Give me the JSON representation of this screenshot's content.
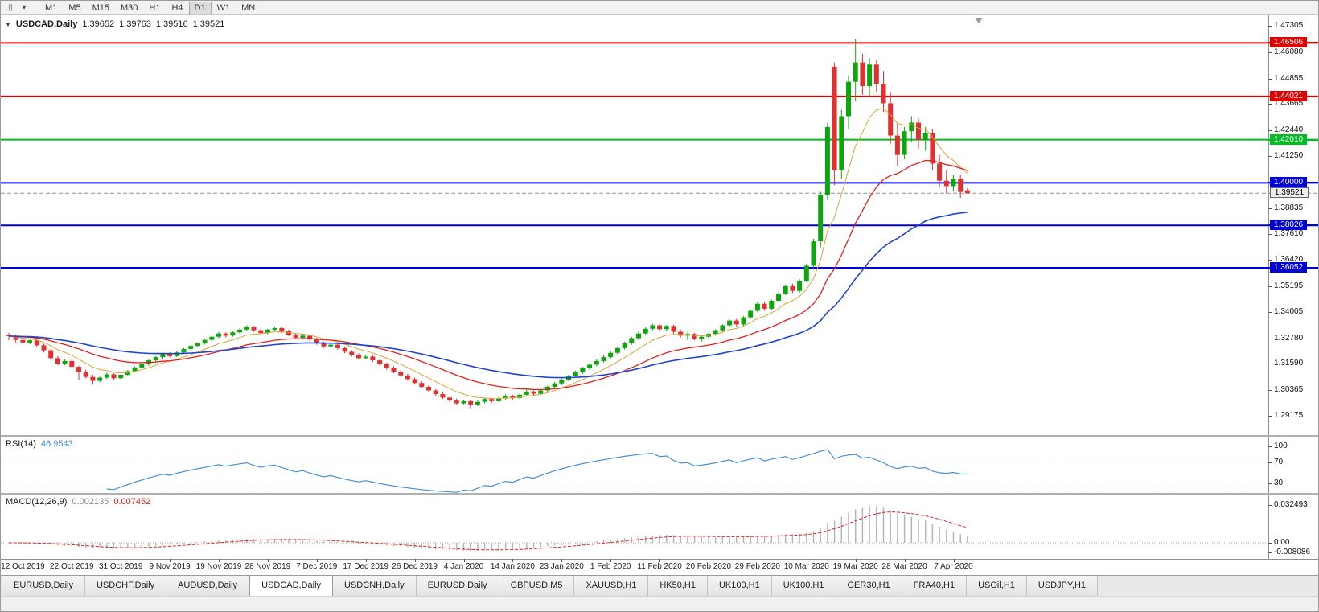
{
  "toolbar": {
    "icons": [
      {
        "name": "candlestick-chart-icon",
        "glyph": "▯"
      },
      {
        "name": "dropdown-caret-icon",
        "glyph": "▾"
      }
    ],
    "timeframes": [
      "M1",
      "M5",
      "M15",
      "M30",
      "H1",
      "H4",
      "D1",
      "W1",
      "MN"
    ],
    "active_timeframe": "D1"
  },
  "chart": {
    "collapse_glyph": "▼",
    "shift_marker_glyph": "▼",
    "header": {
      "symbol": "USDCAD,Daily",
      "open": "1.39652",
      "high": "1.39763",
      "low": "1.39516",
      "close": "1.39521"
    },
    "colors": {
      "bull": "#0ea50e",
      "bear": "#e03030",
      "current_line": "#909090",
      "scale_border": "#8f8f8f"
    },
    "price_axis_ticks": [
      "1.47305",
      "1.46080",
      "1.44855",
      "1.43665",
      "1.42440",
      "1.41250",
      "1.38835",
      "1.37610",
      "1.36420",
      "1.35195",
      "1.34005",
      "1.32780",
      "1.31590",
      "1.30365",
      "1.29175"
    ],
    "levels": [
      {
        "label": "1.46506",
        "price": 1.46506,
        "color": "#e00000"
      },
      {
        "label": "1.44021",
        "price": 1.44021,
        "color": "#e00000"
      },
      {
        "label": "1.42010",
        "price": 1.4201,
        "color": "#00bb22"
      },
      {
        "label": "1.40000",
        "price": 1.4,
        "color": "#0000d8"
      },
      {
        "label": "1.38026",
        "price": 1.38026,
        "color": "#0000d8"
      },
      {
        "label": "1.36052",
        "price": 1.36052,
        "color": "#0000d8"
      }
    ],
    "current_price": "1.39521"
  },
  "chart_data": {
    "type": "candlestick",
    "title": "USDCAD Daily",
    "y_axis_range": [
      1.29175,
      1.47305
    ],
    "x_labels": [
      "12 Oct 2019",
      "22 Oct 2019",
      "31 Oct 2019",
      "9 Nov 2019",
      "19 Nov 2019",
      "28 Nov 2019",
      "7 Dec 2019",
      "17 Dec 2019",
      "26 Dec 2019",
      "4 Jan 2020",
      "14 Jan 2020",
      "23 Jan 2020",
      "1 Feb 2020",
      "11 Feb 2020",
      "20 Feb 2020",
      "29 Feb 2020",
      "10 Mar 2020",
      "19 Mar 2020",
      "28 Mar 2020",
      "7 Apr 2020"
    ],
    "x_label_first_candle_index": 2,
    "x_label_candle_step": 7,
    "horizontal_levels": [
      1.46506,
      1.44021,
      1.4201,
      1.4,
      1.38026,
      1.36052
    ],
    "last_price": 1.39521,
    "moving_averages": [
      {
        "name": "ma-fast",
        "period": 8,
        "color": "#d8a53d",
        "width": 1
      },
      {
        "name": "ma-mid",
        "period": 21,
        "color": "#e02020",
        "width": 1.3
      },
      {
        "name": "ma-slow",
        "period": 45,
        "color": "#2244cc",
        "width": 1.6
      }
    ],
    "candles": [
      [
        1.3295,
        1.3302,
        1.3268,
        1.3288
      ],
      [
        1.3288,
        1.3296,
        1.3258,
        1.327
      ],
      [
        1.327,
        1.3282,
        1.3248,
        1.3258
      ],
      [
        1.3258,
        1.3275,
        1.325,
        1.3268
      ],
      [
        1.3268,
        1.3272,
        1.3238,
        1.3245
      ],
      [
        1.3245,
        1.3252,
        1.3212,
        1.3222
      ],
      [
        1.3222,
        1.323,
        1.3178,
        1.3185
      ],
      [
        1.3185,
        1.3195,
        1.3152,
        1.316
      ],
      [
        1.316,
        1.318,
        1.3152,
        1.3172
      ],
      [
        1.3172,
        1.3178,
        1.3138,
        1.3145
      ],
      [
        1.3145,
        1.315,
        1.3085,
        1.312
      ],
      [
        1.312,
        1.3132,
        1.3092,
        1.3098
      ],
      [
        1.3098,
        1.3108,
        1.3062,
        1.308
      ],
      [
        1.308,
        1.31,
        1.3072,
        1.3095
      ],
      [
        1.3095,
        1.3118,
        1.3088,
        1.311
      ],
      [
        1.311,
        1.3115,
        1.3085,
        1.3092
      ],
      [
        1.3092,
        1.3112,
        1.3086,
        1.3108
      ],
      [
        1.3108,
        1.313,
        1.31,
        1.3125
      ],
      [
        1.3125,
        1.3148,
        1.3118,
        1.3142
      ],
      [
        1.3142,
        1.3162,
        1.3135,
        1.3158
      ],
      [
        1.3158,
        1.318,
        1.315,
        1.3175
      ],
      [
        1.3175,
        1.3195,
        1.3168,
        1.319
      ],
      [
        1.319,
        1.321,
        1.3182,
        1.3205
      ],
      [
        1.3205,
        1.3212,
        1.3188,
        1.3195
      ],
      [
        1.3195,
        1.3218,
        1.319,
        1.3212
      ],
      [
        1.3212,
        1.3232,
        1.3205,
        1.3228
      ],
      [
        1.3228,
        1.3248,
        1.322,
        1.3242
      ],
      [
        1.3242,
        1.326,
        1.3235,
        1.3255
      ],
      [
        1.3255,
        1.3275,
        1.3248,
        1.327
      ],
      [
        1.327,
        1.329,
        1.3262,
        1.3285
      ],
      [
        1.3285,
        1.3308,
        1.3278,
        1.33
      ],
      [
        1.33,
        1.3306,
        1.3282,
        1.329
      ],
      [
        1.329,
        1.3312,
        1.3285,
        1.3305
      ],
      [
        1.3305,
        1.3325,
        1.3298,
        1.3318
      ],
      [
        1.3318,
        1.3338,
        1.331,
        1.333
      ],
      [
        1.333,
        1.3335,
        1.3308,
        1.3315
      ],
      [
        1.3315,
        1.3322,
        1.3295,
        1.3302
      ],
      [
        1.3302,
        1.3322,
        1.3296,
        1.3318
      ],
      [
        1.3318,
        1.3332,
        1.331,
        1.3325
      ],
      [
        1.3325,
        1.333,
        1.3302,
        1.331
      ],
      [
        1.331,
        1.3318,
        1.3288,
        1.3295
      ],
      [
        1.3295,
        1.3302,
        1.3272,
        1.328
      ],
      [
        1.328,
        1.3296,
        1.3274,
        1.329
      ],
      [
        1.329,
        1.3295,
        1.3265,
        1.3272
      ],
      [
        1.3272,
        1.328,
        1.3248,
        1.3255
      ],
      [
        1.3255,
        1.3262,
        1.3232,
        1.324
      ],
      [
        1.324,
        1.3255,
        1.3234,
        1.3248
      ],
      [
        1.3248,
        1.3252,
        1.3225,
        1.3232
      ],
      [
        1.3232,
        1.324,
        1.3208,
        1.3215
      ],
      [
        1.3215,
        1.3222,
        1.3192,
        1.32
      ],
      [
        1.32,
        1.3208,
        1.3178,
        1.3185
      ],
      [
        1.3185,
        1.32,
        1.318,
        1.3192
      ],
      [
        1.3192,
        1.3198,
        1.3168,
        1.3175
      ],
      [
        1.3175,
        1.3182,
        1.315,
        1.3158
      ],
      [
        1.3158,
        1.3165,
        1.3132,
        1.314
      ],
      [
        1.314,
        1.3148,
        1.3115,
        1.3122
      ],
      [
        1.3122,
        1.313,
        1.3098,
        1.3105
      ],
      [
        1.3105,
        1.3112,
        1.308,
        1.3088
      ],
      [
        1.3088,
        1.3095,
        1.3062,
        1.307
      ],
      [
        1.307,
        1.3078,
        1.3045,
        1.3052
      ],
      [
        1.3052,
        1.306,
        1.3028,
        1.3035
      ],
      [
        1.3035,
        1.3042,
        1.301,
        1.3018
      ],
      [
        1.3018,
        1.3028,
        1.2995,
        1.3002
      ],
      [
        1.3002,
        1.301,
        1.298,
        1.2988
      ],
      [
        1.2988,
        1.2998,
        1.2968,
        1.2975
      ],
      [
        1.2975,
        1.2992,
        1.297,
        1.2985
      ],
      [
        1.2985,
        1.299,
        1.2952,
        1.297
      ],
      [
        1.297,
        1.2988,
        1.2962,
        1.2982
      ],
      [
        1.2982,
        1.3,
        1.2975,
        1.2995
      ],
      [
        1.2995,
        1.3,
        1.2978,
        1.2985
      ],
      [
        1.2985,
        1.3005,
        1.298,
        1.2998
      ],
      [
        1.2998,
        1.3018,
        1.2992,
        1.301
      ],
      [
        1.301,
        1.3015,
        1.2992,
        1.3
      ],
      [
        1.3,
        1.302,
        1.2995,
        1.3015
      ],
      [
        1.3015,
        1.3038,
        1.3008,
        1.303
      ],
      [
        1.303,
        1.3035,
        1.3012,
        1.302
      ],
      [
        1.302,
        1.304,
        1.3015,
        1.3035
      ],
      [
        1.3035,
        1.3058,
        1.3028,
        1.3052
      ],
      [
        1.3052,
        1.3075,
        1.3045,
        1.3068
      ],
      [
        1.3068,
        1.3092,
        1.306,
        1.3085
      ],
      [
        1.3085,
        1.3108,
        1.3078,
        1.3102
      ],
      [
        1.3102,
        1.3128,
        1.3095,
        1.312
      ],
      [
        1.312,
        1.3145,
        1.3112,
        1.3138
      ],
      [
        1.3138,
        1.3162,
        1.313,
        1.3155
      ],
      [
        1.3155,
        1.318,
        1.3148,
        1.3172
      ],
      [
        1.3172,
        1.3198,
        1.3165,
        1.319
      ],
      [
        1.319,
        1.3218,
        1.3182,
        1.321
      ],
      [
        1.321,
        1.324,
        1.3202,
        1.3232
      ],
      [
        1.3232,
        1.3262,
        1.3225,
        1.3255
      ],
      [
        1.3255,
        1.3285,
        1.3248,
        1.3278
      ],
      [
        1.3278,
        1.3308,
        1.327,
        1.33
      ],
      [
        1.33,
        1.333,
        1.3292,
        1.3322
      ],
      [
        1.3322,
        1.3345,
        1.3315,
        1.3338
      ],
      [
        1.3338,
        1.3342,
        1.3312,
        1.332
      ],
      [
        1.332,
        1.334,
        1.331,
        1.3335
      ],
      [
        1.3335,
        1.334,
        1.33,
        1.3308
      ],
      [
        1.3308,
        1.3318,
        1.3282,
        1.329
      ],
      [
        1.329,
        1.3305,
        1.327,
        1.3298
      ],
      [
        1.3298,
        1.3302,
        1.3268,
        1.3275
      ],
      [
        1.3275,
        1.3292,
        1.3262,
        1.3285
      ],
      [
        1.3285,
        1.3302,
        1.3278,
        1.3298
      ],
      [
        1.3298,
        1.332,
        1.329,
        1.3315
      ],
      [
        1.3315,
        1.3342,
        1.3308,
        1.3338
      ],
      [
        1.3338,
        1.3365,
        1.333,
        1.336
      ],
      [
        1.336,
        1.3368,
        1.3332,
        1.3342
      ],
      [
        1.3342,
        1.338,
        1.3335,
        1.3375
      ],
      [
        1.3375,
        1.3412,
        1.3368,
        1.3405
      ],
      [
        1.3405,
        1.3445,
        1.3398,
        1.3438
      ],
      [
        1.3438,
        1.3448,
        1.3405,
        1.3415
      ],
      [
        1.3415,
        1.3458,
        1.3408,
        1.3452
      ],
      [
        1.3452,
        1.3492,
        1.3445,
        1.3485
      ],
      [
        1.3485,
        1.3528,
        1.3478,
        1.352
      ],
      [
        1.352,
        1.3532,
        1.3488,
        1.3498
      ],
      [
        1.3498,
        1.3552,
        1.349,
        1.3545
      ],
      [
        1.3545,
        1.3625,
        1.3538,
        1.3615
      ],
      [
        1.3615,
        1.374,
        1.3605,
        1.3728
      ],
      [
        1.3728,
        1.396,
        1.37,
        1.3945
      ],
      [
        1.3945,
        1.428,
        1.392,
        1.426
      ],
      [
        1.454,
        1.456,
        1.399,
        1.406
      ],
      [
        1.406,
        1.434,
        1.402,
        1.431
      ],
      [
        1.431,
        1.45,
        1.425,
        1.447
      ],
      [
        1.447,
        1.4669,
        1.438,
        1.456
      ],
      [
        1.456,
        1.46,
        1.441,
        1.445
      ],
      [
        1.445,
        1.458,
        1.44,
        1.455
      ],
      [
        1.455,
        1.457,
        1.442,
        1.446
      ],
      [
        1.446,
        1.452,
        1.433,
        1.437
      ],
      [
        1.437,
        1.442,
        1.418,
        1.422
      ],
      [
        1.422,
        1.428,
        1.408,
        1.413
      ],
      [
        1.413,
        1.426,
        1.411,
        1.424
      ],
      [
        1.424,
        1.431,
        1.419,
        1.428
      ],
      [
        1.428,
        1.43,
        1.416,
        1.42
      ],
      [
        1.42,
        1.426,
        1.415,
        1.423
      ],
      [
        1.423,
        1.425,
        1.406,
        1.409
      ],
      [
        1.409,
        1.413,
        1.398,
        1.401
      ],
      [
        1.401,
        1.406,
        1.395,
        1.3985
      ],
      [
        1.3985,
        1.404,
        1.396,
        1.402
      ],
      [
        1.402,
        1.4035,
        1.393,
        1.3958
      ],
      [
        1.39652,
        1.39763,
        1.39516,
        1.39521
      ]
    ]
  },
  "rsi": {
    "label": "RSI(14)",
    "value": "46.9543",
    "period": 14,
    "color": "#4a90d0",
    "guide_levels": [
      70,
      30
    ],
    "axis": [
      {
        "label": "100",
        "value": 100
      },
      {
        "label": "70",
        "value": 70
      },
      {
        "label": "30",
        "value": 30
      }
    ]
  },
  "macd": {
    "label": "MACD(12,26,9)",
    "main_value": "0.002135",
    "signal_value": "0.007452",
    "fast": 12,
    "slow": 26,
    "signal": 9,
    "hist_color": "#b6b6b6",
    "signal_color": "#e02020",
    "axis": [
      {
        "label": "0.032493",
        "value": 0.032493
      },
      {
        "label": "0.00",
        "value": 0
      },
      {
        "label": "-0.008086",
        "value": -0.008086
      }
    ]
  },
  "tabs": {
    "active_index": 3,
    "items": [
      "EURUSD,Daily",
      "USDCHF,Daily",
      "AUDUSD,Daily",
      "USDCAD,Daily",
      "USDCNH,Daily",
      "EURUSD,Daily",
      "GBPUSD,M5",
      "XAUUSD,H1",
      "HK50,H1",
      "UK100,H1",
      "UK100,H1",
      "GER30,H1",
      "FRA40,H1",
      "USOil,H1",
      "USDJPY,H1"
    ]
  }
}
